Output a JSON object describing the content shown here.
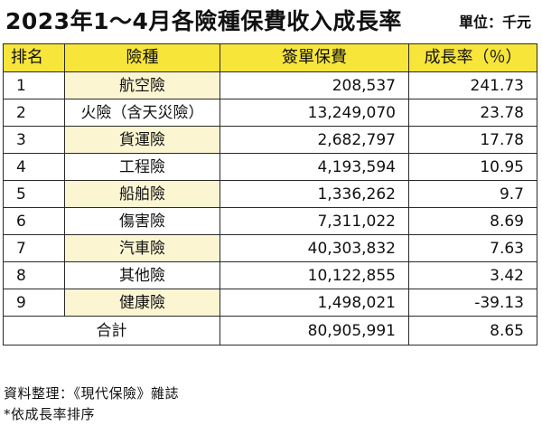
{
  "title": "2023年1～4月各險種保費收入成長率",
  "unit": "單位：千元",
  "table": {
    "headers": {
      "rank": "排名",
      "type": "險種",
      "premium": "簽單保費",
      "growth": "成長率（％）"
    },
    "rows": [
      {
        "rank": "1",
        "type": "航空險",
        "premium": "208,537",
        "growth": "241.73"
      },
      {
        "rank": "2",
        "type": "火險（含天災險）",
        "premium": "13,249,070",
        "growth": "23.78"
      },
      {
        "rank": "3",
        "type": "貨運險",
        "premium": "2,682,797",
        "growth": "17.78"
      },
      {
        "rank": "4",
        "type": "工程險",
        "premium": "4,193,594",
        "growth": "10.95"
      },
      {
        "rank": "5",
        "type": "船舶險",
        "premium": "1,336,262",
        "growth": "9.7"
      },
      {
        "rank": "6",
        "type": "傷害險",
        "premium": "7,311,022",
        "growth": "8.69"
      },
      {
        "rank": "7",
        "type": "汽車險",
        "premium": "40,303,832",
        "growth": "7.63"
      },
      {
        "rank": "8",
        "type": "其他險",
        "premium": "10,122,855",
        "growth": "3.42"
      },
      {
        "rank": "9",
        "type": "健康險",
        "premium": "1,498,021",
        "growth": "-39.13"
      }
    ],
    "total": {
      "label": "合計",
      "premium": "80,905,991",
      "growth": "8.65"
    }
  },
  "footer": {
    "source": "資料整理：《現代保險》雜誌",
    "note": "*依成長率排序"
  },
  "colors": {
    "header_bg": "#f7e53a",
    "shaded_cell_bg": "#fbf5d2",
    "border": "#2a2a2a"
  }
}
